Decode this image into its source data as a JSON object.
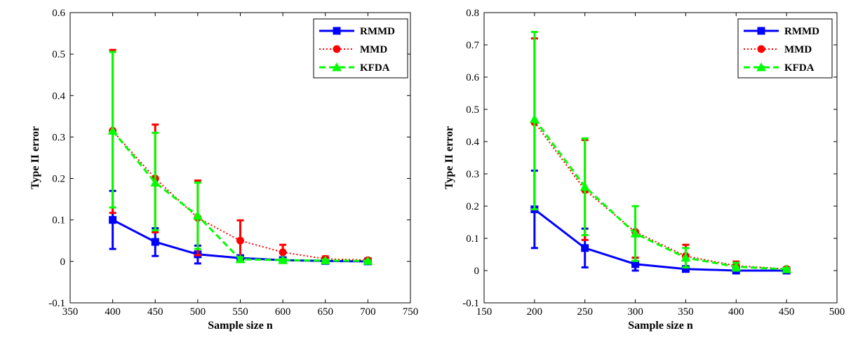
{
  "colors": {
    "RMMD": "#0000ff",
    "MMD": "#ff0000",
    "KFDA": "#00ff00"
  },
  "chart_data": [
    {
      "type": "line",
      "title": "",
      "xlabel": "Sample size n",
      "ylabel": "Type II error",
      "xlim": [
        350,
        750
      ],
      "ylim": [
        -0.1,
        0.6
      ],
      "xticks": [
        350,
        400,
        450,
        500,
        550,
        600,
        650,
        700,
        750
      ],
      "yticks": [
        -0.1,
        0,
        0.1,
        0.2,
        0.3,
        0.4,
        0.5,
        0.6
      ],
      "legend_position": "top-right",
      "x": [
        400,
        450,
        500,
        550,
        600,
        650,
        700
      ],
      "series": [
        {
          "name": "RMMD",
          "style": "solid",
          "marker": "square",
          "values": [
            0.1,
            0.047,
            0.017,
            0.008,
            0.003,
            0.001,
            0.0
          ],
          "err_low": [
            0.03,
            0.013,
            -0.005,
            0.003,
            0.0,
            0.0,
            0.0
          ],
          "err_high": [
            0.17,
            0.08,
            0.038,
            0.013,
            0.006,
            0.003,
            0.001
          ]
        },
        {
          "name": "MMD",
          "style": "dotted",
          "marker": "circle",
          "values": [
            0.315,
            0.2,
            0.105,
            0.05,
            0.022,
            0.006,
            0.003
          ],
          "err_low": [
            0.117,
            0.07,
            0.015,
            0.0,
            0.005,
            0.0,
            0.0
          ],
          "err_high": [
            0.51,
            0.33,
            0.195,
            0.099,
            0.04,
            0.012,
            0.006
          ]
        },
        {
          "name": "KFDA",
          "style": "dashed",
          "marker": "triangle",
          "values": [
            0.315,
            0.19,
            0.11,
            0.005,
            0.003,
            0.002,
            0.001
          ],
          "err_low": [
            0.13,
            0.075,
            0.03,
            0.0,
            0.0,
            0.0,
            0.0
          ],
          "err_high": [
            0.505,
            0.31,
            0.19,
            0.01,
            0.006,
            0.004,
            0.002
          ]
        }
      ]
    },
    {
      "type": "line",
      "title": "",
      "xlabel": "Sample size n",
      "ylabel": "Type II error",
      "xlim": [
        150,
        500
      ],
      "ylim": [
        -0.1,
        0.8
      ],
      "xticks": [
        150,
        200,
        250,
        300,
        350,
        400,
        450,
        500
      ],
      "yticks": [
        -0.1,
        0,
        0.1,
        0.2,
        0.3,
        0.4,
        0.5,
        0.6,
        0.7,
        0.8
      ],
      "legend_position": "top-right",
      "x": [
        200,
        250,
        300,
        350,
        400,
        450
      ],
      "series": [
        {
          "name": "RMMD",
          "style": "solid",
          "marker": "square",
          "values": [
            0.19,
            0.07,
            0.02,
            0.005,
            0.0,
            0.0
          ],
          "err_low": [
            0.07,
            0.01,
            0.0,
            0.0,
            0.0,
            0.0
          ],
          "err_high": [
            0.31,
            0.13,
            0.04,
            0.01,
            0.002,
            0.001
          ]
        },
        {
          "name": "MMD",
          "style": "dotted",
          "marker": "circle",
          "values": [
            0.46,
            0.25,
            0.12,
            0.045,
            0.015,
            0.005
          ],
          "err_low": [
            0.19,
            0.095,
            0.04,
            0.01,
            0.0,
            0.0
          ],
          "err_high": [
            0.72,
            0.405,
            0.2,
            0.08,
            0.028,
            0.01
          ]
        },
        {
          "name": "KFDA",
          "style": "dashed",
          "marker": "triangle",
          "values": [
            0.47,
            0.26,
            0.115,
            0.04,
            0.012,
            0.004
          ],
          "err_low": [
            0.19,
            0.11,
            0.03,
            0.01,
            0.0,
            0.0
          ],
          "err_high": [
            0.74,
            0.41,
            0.2,
            0.07,
            0.024,
            0.008
          ]
        }
      ]
    }
  ]
}
